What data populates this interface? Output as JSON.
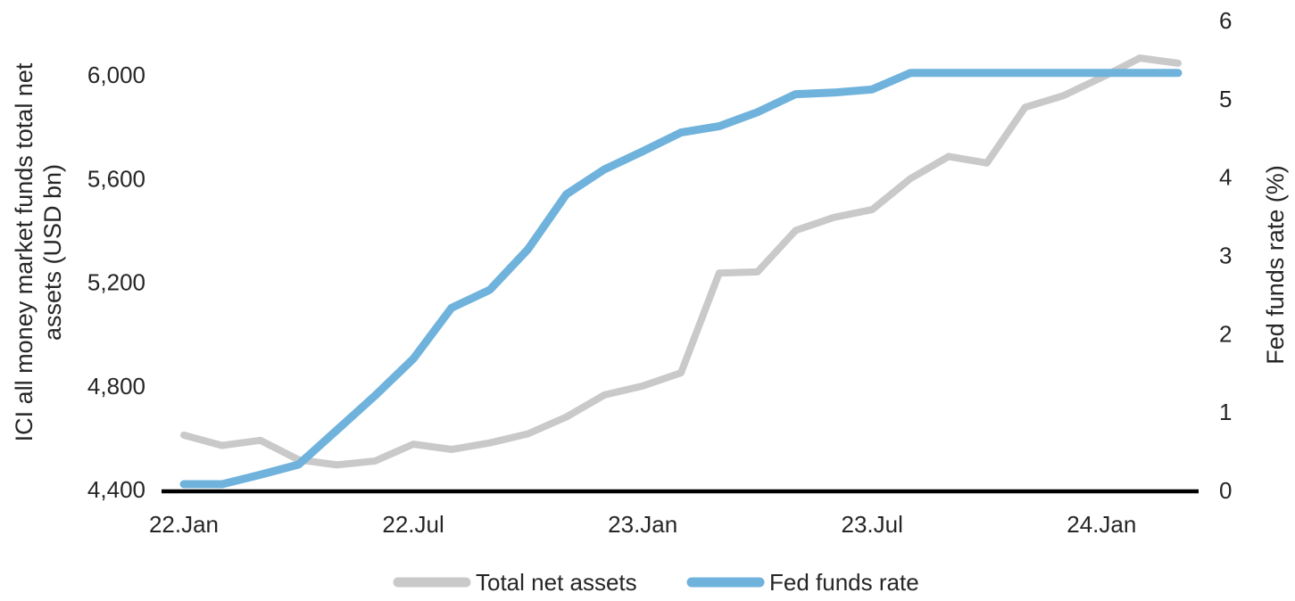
{
  "chart_data": {
    "type": "line",
    "title": "",
    "x": [
      "22.Jan",
      "22.Feb",
      "22.Mar",
      "22.Apr",
      "22.May",
      "22.Jun",
      "22.Jul",
      "22.Aug",
      "22.Sep",
      "22.Oct",
      "22.Nov",
      "22.Dec",
      "23.Jan",
      "23.Feb",
      "23.Mar",
      "23.Apr",
      "23.May",
      "23.Jun",
      "23.Jul",
      "23.Aug",
      "23.Sep",
      "23.Oct",
      "23.Nov",
      "23.Dec",
      "24.Jan",
      "24.Feb",
      "24.Mar"
    ],
    "x_tick_labels": [
      "22.Jan",
      "22.Jul",
      "23.Jan",
      "23.Jul",
      "24.Jan"
    ],
    "series": [
      {
        "name": "Total net assets",
        "axis": "left",
        "color": "#C9C9C9",
        "values": [
          4610,
          4570,
          4590,
          4515,
          4495,
          4510,
          4575,
          4555,
          4580,
          4615,
          4680,
          4765,
          4800,
          4850,
          5235,
          5240,
          5400,
          5450,
          5480,
          5600,
          5685,
          5660,
          5875,
          5920,
          5990,
          6065,
          6045
        ]
      },
      {
        "name": "Fed funds rate",
        "axis": "right",
        "color": "#6FB2DC",
        "values": [
          0.08,
          0.08,
          0.2,
          0.33,
          0.77,
          1.21,
          1.68,
          2.33,
          2.56,
          3.08,
          3.78,
          4.1,
          4.33,
          4.57,
          4.65,
          4.83,
          5.06,
          5.08,
          5.12,
          5.33,
          5.33,
          5.33,
          5.33,
          5.33,
          5.33,
          5.33,
          5.33
        ]
      }
    ],
    "left_axis": {
      "title_line1": "ICI all money market funds total net",
      "title_line2": "assets (USD bn)",
      "ticks": [
        "4,400",
        "4,800",
        "5,200",
        "5,600",
        "6,000"
      ],
      "tick_values": [
        4400,
        4800,
        5200,
        5600,
        6000
      ],
      "min": 4400,
      "max": 6000
    },
    "right_axis": {
      "title": "Fed funds rate (%)",
      "ticks": [
        "0",
        "1",
        "2",
        "3",
        "4",
        "5",
        "6"
      ],
      "tick_values": [
        0,
        1,
        2,
        3,
        4,
        5,
        6
      ],
      "min": 0,
      "max": 6
    },
    "x_axis": {
      "tick_labels": [
        "22.Jan",
        "22.Jul",
        "23.Jan",
        "23.Jul",
        "24.Jan"
      ]
    },
    "legend": {
      "position": "bottom",
      "entries": [
        {
          "label": "Total net assets",
          "color": "#C9C9C9"
        },
        {
          "label": "Fed funds rate",
          "color": "#6FB2DC"
        }
      ]
    },
    "grid": false,
    "axis_line_color": "#000000",
    "text_color": "#262626",
    "background_color": "#FFFFFF"
  }
}
